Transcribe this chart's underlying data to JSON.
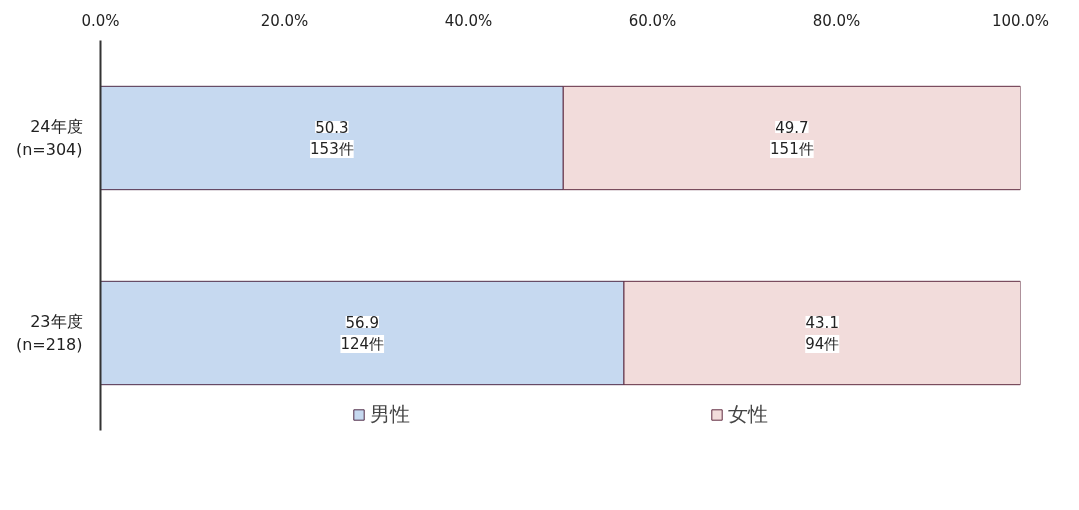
{
  "chart_data": {
    "type": "bar",
    "orientation": "horizontal",
    "stacked": true,
    "categories": [
      "24年度\n(n=304)",
      "23年度\n(n=218)"
    ],
    "series": [
      {
        "name": "男性",
        "color": "#c6d9f0",
        "values": [
          50.3,
          56.9
        ]
      },
      {
        "name": "女性",
        "color": "#f2dcdb",
        "values": [
          49.7,
          43.1
        ]
      }
    ],
    "data_labels": true,
    "annotations": [
      "153件",
      "124件",
      "151件",
      "94件"
    ],
    "xlim": [
      0,
      100
    ],
    "xticks": [
      {
        "value": 0,
        "label": "0.0%"
      },
      {
        "value": 20,
        "label": "20.0%"
      },
      {
        "value": 40,
        "label": "40.0%"
      },
      {
        "value": 60,
        "label": "60.0%"
      },
      {
        "value": 80,
        "label": "80.0%"
      },
      {
        "value": 100,
        "label": "100.0%"
      }
    ],
    "grid": false,
    "legend": "bottom"
  }
}
